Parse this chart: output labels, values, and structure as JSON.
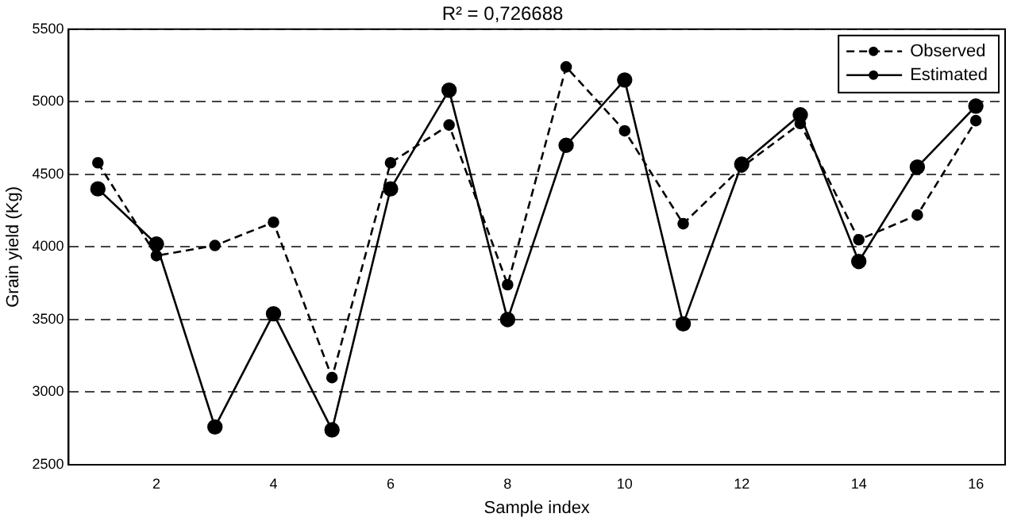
{
  "chart_data": {
    "type": "line",
    "title": "R² = 0,726688",
    "xlabel": "Sample index",
    "ylabel": "Grain yield (Kg)",
    "x": [
      1,
      2,
      3,
      4,
      5,
      6,
      7,
      8,
      9,
      10,
      11,
      12,
      13,
      14,
      15,
      16
    ],
    "series": [
      {
        "name": "Observed",
        "color": "#000000",
        "line_style": "dashed",
        "values": [
          4580,
          3940,
          4010,
          4170,
          3100,
          4580,
          4840,
          3740,
          5240,
          4800,
          4160,
          4550,
          4850,
          4050,
          4220,
          4870
        ]
      },
      {
        "name": "Estimated",
        "color": "#000000",
        "line_style": "solid",
        "values": [
          4400,
          4020,
          2760,
          3540,
          2740,
          4400,
          5080,
          3500,
          4700,
          5150,
          3470,
          4570,
          4910,
          3900,
          4550,
          4970
        ]
      }
    ],
    "xlim": [
      0.5,
      16.5
    ],
    "xticks": [
      2,
      4,
      6,
      8,
      10,
      12,
      14,
      16
    ],
    "ylim": [
      2500,
      5500
    ],
    "yticks": [
      2500,
      3000,
      3500,
      4000,
      4500,
      5000,
      5500
    ],
    "grid": "y",
    "legend": "top right",
    "marker": "circle"
  }
}
